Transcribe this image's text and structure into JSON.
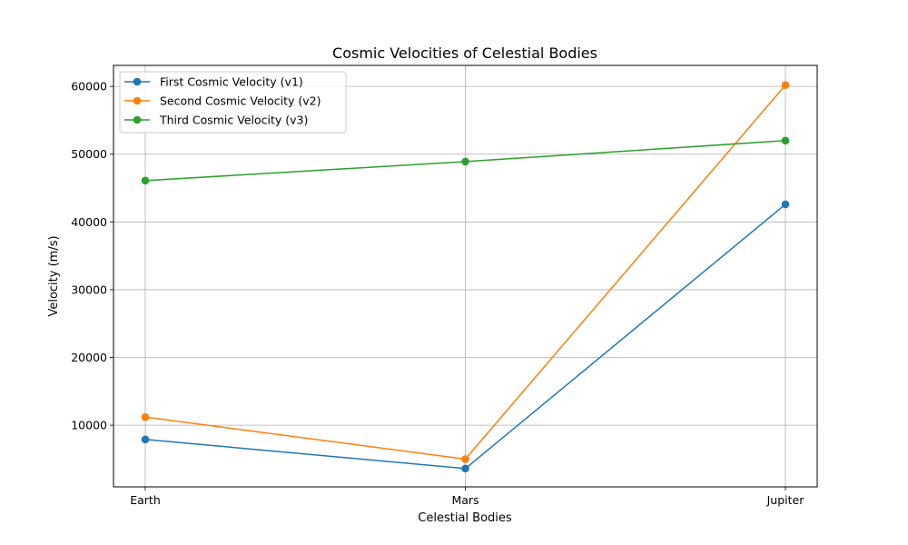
{
  "chart_data": {
    "type": "line",
    "title": "Cosmic Velocities of Celestial Bodies",
    "xlabel": "Celestial Bodies",
    "ylabel": "Velocity (m/s)",
    "categories": [
      "Earth",
      "Mars",
      "Jupiter"
    ],
    "ylim": [
      900,
      63100
    ],
    "yticks": [
      10000,
      20000,
      30000,
      40000,
      50000,
      60000
    ],
    "grid": true,
    "legend_position": "top-left",
    "series": [
      {
        "name": "First Cosmic Velocity (v1)",
        "color": "#1f77b4",
        "values": [
          7900,
          3600,
          42600
        ]
      },
      {
        "name": "Second Cosmic Velocity (v2)",
        "color": "#ff7f0e",
        "values": [
          11200,
          5000,
          60200
        ]
      },
      {
        "name": "Third Cosmic Velocity (v3)",
        "color": "#2ca02c",
        "values": [
          46100,
          48900,
          52000
        ]
      }
    ]
  }
}
